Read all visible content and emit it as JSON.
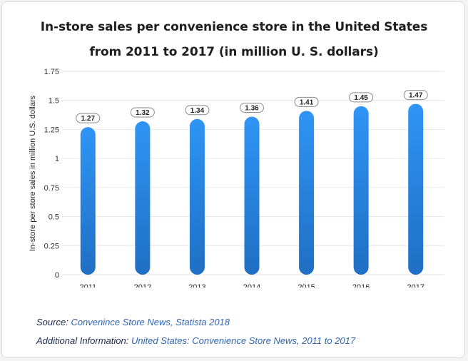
{
  "title_line1": "In-store sales per convenience store in the United States",
  "title_line2": "from 2011 to 2017 (in million U. S. dollars)",
  "chart_data": {
    "type": "bar",
    "categories": [
      "2011",
      "2012",
      "2013",
      "2014",
      "2015",
      "2016",
      "2017"
    ],
    "values": [
      1.27,
      1.32,
      1.34,
      1.36,
      1.41,
      1.45,
      1.47
    ],
    "value_labels": [
      "1.27",
      "1.32",
      "1.34",
      "1.36",
      "1.41",
      "1.45",
      "1.47"
    ],
    "ylabel": "In-store per store sales in million U.S. dollars",
    "xlabel": "",
    "ylim": [
      0,
      1.75
    ],
    "yticks": [
      "0",
      "0.25",
      "0.5",
      "0.75",
      "1",
      "1.25",
      "1.5",
      "1.75"
    ],
    "yticks_values": [
      0,
      0.25,
      0.5,
      0.75,
      1,
      1.25,
      1.5,
      1.75
    ],
    "grid": true,
    "bar_color_top": "#2f95f5",
    "bar_color_bottom": "#1f6fc4"
  },
  "footer": {
    "source_label": "Source:",
    "source_value": "Convenince Store News, Statista 2018",
    "info_label": "Additional Information:",
    "info_value": "United States: Convenience Store News, 2011 to 2017"
  }
}
